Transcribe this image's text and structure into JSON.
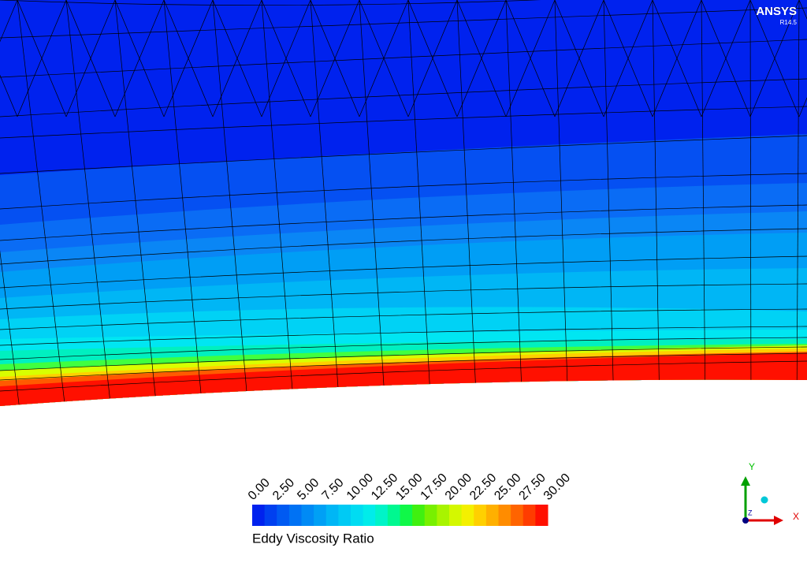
{
  "logo": {
    "name": "ANSYS",
    "version": "R14.5"
  },
  "colorbar": {
    "title": "Eddy Viscosity Ratio",
    "ticks": [
      {
        "value": 0,
        "label": "0.00"
      },
      {
        "value": 2.5,
        "label": "2.50"
      },
      {
        "value": 5,
        "label": "5.00"
      },
      {
        "value": 7.5,
        "label": "7.50"
      },
      {
        "value": 10,
        "label": "10.00"
      },
      {
        "value": 12.5,
        "label": "12.50"
      },
      {
        "value": 15,
        "label": "15.00"
      },
      {
        "value": 17.5,
        "label": "17.50"
      },
      {
        "value": 20,
        "label": "20.00"
      },
      {
        "value": 22.5,
        "label": "22.50"
      },
      {
        "value": 25,
        "label": "25.00"
      },
      {
        "value": 27.5,
        "label": "27.50"
      },
      {
        "value": 30,
        "label": "30.00"
      }
    ],
    "colors": [
      "#0022ee",
      "#0040f0",
      "#005af2",
      "#0072f4",
      "#008af5",
      "#00a0f5",
      "#00b6f5",
      "#00caf4",
      "#00dcf2",
      "#00ecea",
      "#00f4c8",
      "#00f890",
      "#10f848",
      "#40f010",
      "#78f000",
      "#a8f400",
      "#d4f800",
      "#f4f000",
      "#ffd000",
      "#ffb000",
      "#ff8c00",
      "#ff6400",
      "#ff3c00",
      "#ff1000"
    ]
  },
  "triad": {
    "y": "Y",
    "x": "X",
    "z": "Z"
  }
}
